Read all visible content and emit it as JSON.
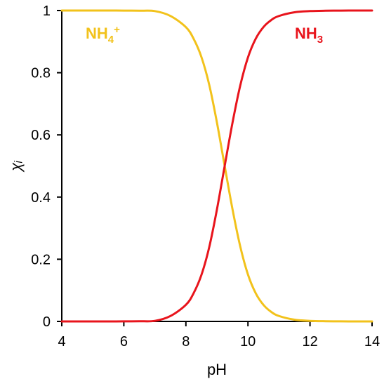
{
  "chart_data": {
    "type": "line",
    "xlabel": "pH",
    "ylabel": "χᵢ",
    "xlim": [
      4,
      14
    ],
    "ylim": [
      0,
      1
    ],
    "xticks": [
      "4",
      "6",
      "8",
      "10",
      "12",
      "14"
    ],
    "yticks": [
      "0",
      "0.2",
      "0.4",
      "0.6",
      "0.8",
      "1"
    ],
    "grid": false,
    "x": [
      4,
      4.5,
      5,
      5.5,
      6,
      6.5,
      7,
      7.5,
      8,
      8.25,
      8.5,
      8.75,
      9,
      9.25,
      9.5,
      9.75,
      10,
      10.25,
      10.5,
      10.75,
      11,
      11.5,
      12,
      12.5,
      13,
      13.5,
      14
    ],
    "series": [
      {
        "name": "NH4+",
        "label_main": "NH",
        "label_sub": "4",
        "label_sup": "+",
        "color": "#F2C21B",
        "values": [
          1.0,
          1.0,
          1.0,
          1.0,
          0.9998,
          0.9994,
          0.9982,
          0.9827,
          0.9466,
          0.9089,
          0.8506,
          0.762,
          0.6401,
          0.5,
          0.362,
          0.242,
          0.151,
          0.0908,
          0.0532,
          0.0307,
          0.0175,
          0.0056,
          0.0018,
          0.0006,
          0.0002,
          0.0001,
          0.0
        ]
      },
      {
        "name": "NH3",
        "label_main": "NH",
        "label_sub": "3",
        "label_sup": "",
        "color": "#E8141C",
        "values": [
          0.0,
          0.0,
          0.0,
          0.0,
          0.0002,
          0.0006,
          0.0018,
          0.0173,
          0.0534,
          0.0911,
          0.1494,
          0.238,
          0.3599,
          0.5,
          0.638,
          0.758,
          0.849,
          0.9092,
          0.9468,
          0.9693,
          0.9825,
          0.9944,
          0.9982,
          0.9994,
          0.9998,
          0.9999,
          1.0
        ]
      }
    ]
  }
}
